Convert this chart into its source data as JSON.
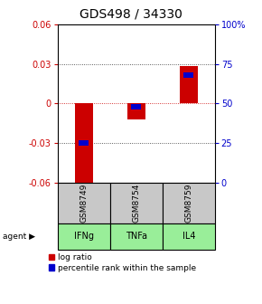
{
  "title": "GDS498 / 34330",
  "samples": [
    "GSM8749",
    "GSM8754",
    "GSM8759"
  ],
  "agents": [
    "IFNg",
    "TNFa",
    "IL4"
  ],
  "log_ratios": [
    -0.065,
    -0.012,
    0.028
  ],
  "percentile_ranks": [
    25.0,
    48.0,
    68.0
  ],
  "ylim_left": [
    -0.06,
    0.06
  ],
  "ylim_right": [
    0,
    100
  ],
  "yticks_left": [
    -0.06,
    -0.03,
    0,
    0.03,
    0.06
  ],
  "yticks_right": [
    0,
    25,
    50,
    75,
    100
  ],
  "bar_color": "#cc0000",
  "percentile_color": "#0000cc",
  "sample_bg": "#c8c8c8",
  "agent_bg": "#99ee99",
  "bar_width": 0.35,
  "title_fontsize": 10,
  "tick_fontsize": 7,
  "legend_fontsize": 6.5
}
